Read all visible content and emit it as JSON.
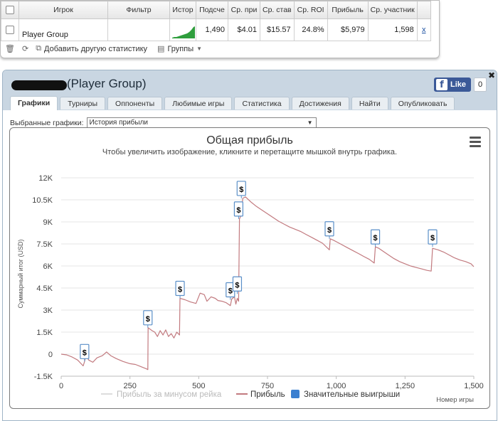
{
  "stats_table": {
    "columns": [
      "Игрок",
      "Фильтр",
      "Истор",
      "Подсче",
      "Ср. при",
      "Ср. став",
      "Ср. ROI",
      "Прибыль",
      "Ср. участник"
    ],
    "row": {
      "player": "Player Group",
      "filter": "",
      "count": "1,490",
      "avg_profit": "$4.01",
      "avg_stake": "$15.57",
      "avg_roi": "24.8%",
      "profit": "$5,979",
      "avg_entrants": "1,598",
      "remove_label": "x"
    }
  },
  "stats_toolbar": {
    "add_stats_label": "Добавить другую статистику",
    "groups_label": "Группы"
  },
  "player_panel": {
    "title": "(Player Group)",
    "like_label": "Like",
    "like_count": "0",
    "close_label": "✖",
    "tabs": [
      "Графики",
      "Турниры",
      "Оппоненты",
      "Любимые игры",
      "Статистика",
      "Достижения",
      "Найти",
      "Опубликовать"
    ],
    "active_tab": "Графики",
    "selected_charts_label": "Выбранные графики:",
    "selected_chart": "История прибыли"
  },
  "chart_data": {
    "type": "line",
    "title": "Общая прибыль",
    "subtitle": "Чтобы увеличить изображение, кликните и перетащите мышкой внутрь графика.",
    "xlabel": "Номер игры",
    "ylabel": "Суммарный итог (USD)",
    "xlim": [
      0,
      1500
    ],
    "ylim": [
      -1500,
      12000
    ],
    "x_ticks": [
      "0",
      "250",
      "500",
      "750",
      "1,000",
      "1,250",
      "1,500"
    ],
    "y_ticks": [
      "-1.5K",
      "0",
      "1.5K",
      "3K",
      "4.5K",
      "6K",
      "7.5K",
      "9K",
      "10.5K",
      "12K"
    ],
    "grid": true,
    "colors": {
      "profit": "#c27a7f",
      "rake": "#dddddd",
      "wins": "#3a7fd0"
    },
    "legend": [
      "Прибыль за минусом рейка",
      "Прибыль",
      "Значительные выигрыши"
    ],
    "series": [
      {
        "name": "Прибыль",
        "points": [
          [
            0,
            0
          ],
          [
            20,
            -50
          ],
          [
            40,
            -200
          ],
          [
            60,
            -400
          ],
          [
            80,
            -800
          ],
          [
            85,
            -500
          ],
          [
            90,
            -50
          ],
          [
            100,
            -400
          ],
          [
            115,
            -550
          ],
          [
            130,
            -250
          ],
          [
            150,
            -100
          ],
          [
            165,
            150
          ],
          [
            180,
            -100
          ],
          [
            200,
            -300
          ],
          [
            225,
            -500
          ],
          [
            250,
            -650
          ],
          [
            270,
            -700
          ],
          [
            290,
            -850
          ],
          [
            310,
            -1000
          ],
          [
            315,
            -1050
          ],
          [
            316,
            1800
          ],
          [
            330,
            1600
          ],
          [
            340,
            1500
          ],
          [
            350,
            1200
          ],
          [
            360,
            1600
          ],
          [
            370,
            1300
          ],
          [
            380,
            1650
          ],
          [
            390,
            1200
          ],
          [
            400,
            1400
          ],
          [
            410,
            1100
          ],
          [
            420,
            1500
          ],
          [
            430,
            1300
          ],
          [
            432,
            3800
          ],
          [
            450,
            3700
          ],
          [
            470,
            3550
          ],
          [
            490,
            3450
          ],
          [
            505,
            4150
          ],
          [
            520,
            4050
          ],
          [
            530,
            3600
          ],
          [
            545,
            3900
          ],
          [
            560,
            3800
          ],
          [
            570,
            3650
          ],
          [
            585,
            3600
          ],
          [
            600,
            3500
          ],
          [
            615,
            3300
          ],
          [
            620,
            3750
          ],
          [
            630,
            3900
          ],
          [
            635,
            3400
          ],
          [
            640,
            3800
          ],
          [
            645,
            3600
          ],
          [
            648,
            9200
          ],
          [
            655,
            9500
          ],
          [
            660,
            10600
          ],
          [
            670,
            10700
          ],
          [
            690,
            10350
          ],
          [
            710,
            10050
          ],
          [
            730,
            9800
          ],
          [
            750,
            9550
          ],
          [
            770,
            9300
          ],
          [
            790,
            9050
          ],
          [
            810,
            8850
          ],
          [
            830,
            8650
          ],
          [
            850,
            8500
          ],
          [
            870,
            8350
          ],
          [
            890,
            8150
          ],
          [
            910,
            7950
          ],
          [
            930,
            7750
          ],
          [
            950,
            7550
          ],
          [
            975,
            7100
          ],
          [
            978,
            7850
          ],
          [
            990,
            7750
          ],
          [
            1005,
            7600
          ],
          [
            1020,
            7450
          ],
          [
            1040,
            7250
          ],
          [
            1060,
            7050
          ],
          [
            1080,
            6850
          ],
          [
            1100,
            6650
          ],
          [
            1120,
            6450
          ],
          [
            1138,
            6200
          ],
          [
            1142,
            7300
          ],
          [
            1155,
            7200
          ],
          [
            1170,
            7000
          ],
          [
            1190,
            6750
          ],
          [
            1210,
            6500
          ],
          [
            1230,
            6300
          ],
          [
            1250,
            6150
          ],
          [
            1270,
            6000
          ],
          [
            1290,
            5900
          ],
          [
            1310,
            5800
          ],
          [
            1330,
            5700
          ],
          [
            1345,
            5650
          ],
          [
            1350,
            7200
          ],
          [
            1370,
            7100
          ],
          [
            1390,
            6950
          ],
          [
            1410,
            6750
          ],
          [
            1430,
            6550
          ],
          [
            1450,
            6400
          ],
          [
            1470,
            6300
          ],
          [
            1490,
            6150
          ],
          [
            1500,
            5950
          ]
        ]
      }
    ],
    "significant_wins": [
      {
        "x": 85,
        "y": -500
      },
      {
        "x": 315,
        "y": 1800
      },
      {
        "x": 432,
        "y": 3800
      },
      {
        "x": 615,
        "y": 3700
      },
      {
        "x": 640,
        "y": 4100
      },
      {
        "x": 645,
        "y": 9200
      },
      {
        "x": 655,
        "y": 10600
      },
      {
        "x": 975,
        "y": 7850
      },
      {
        "x": 1142,
        "y": 7300
      },
      {
        "x": 1350,
        "y": 7300
      }
    ],
    "win_marker_label": "$"
  }
}
